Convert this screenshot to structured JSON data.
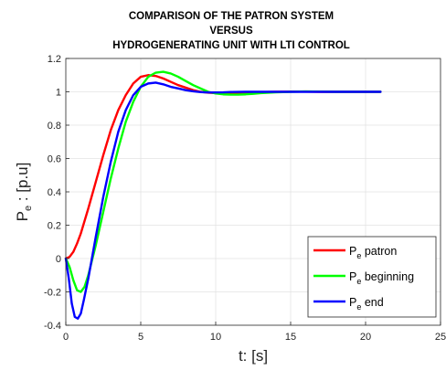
{
  "chart_data": {
    "type": "line",
    "title": [
      "COMPARISON OF THE PATRON SYSTEM",
      "VERSUS",
      "HYDROGENERATING UNIT WITH LTI CONTROL"
    ],
    "xlabel": "t: [s]",
    "ylabel": {
      "main": "P",
      "sub": "e",
      "rest": " : [p.u]"
    },
    "xlim": [
      0,
      25
    ],
    "ylim": [
      -0.4,
      1.2
    ],
    "xticks": [
      0,
      5,
      10,
      15,
      20,
      25
    ],
    "yticks": [
      -0.4,
      -0.2,
      0,
      0.2,
      0.4,
      0.6,
      0.8,
      1,
      1.2
    ],
    "grid": true,
    "legend_position": "bottom-right",
    "series": [
      {
        "name": {
          "main": "P",
          "sub": "e",
          "rest": " patron"
        },
        "color": "#ff0000",
        "x": [
          0,
          0.25,
          0.5,
          0.75,
          1.0,
          1.5,
          2.0,
          2.5,
          3.0,
          3.5,
          4.0,
          4.5,
          5.0,
          5.5,
          6.0,
          6.5,
          7.0,
          7.5,
          8.0,
          8.5,
          9.0,
          9.5,
          10.0,
          10.5,
          11.0,
          11.5,
          12.0,
          13.0,
          14.0,
          15.0,
          16.0,
          17.0,
          18.0,
          19.0,
          20.0,
          21.0
        ],
        "y": [
          0,
          0.01,
          0.04,
          0.09,
          0.15,
          0.3,
          0.46,
          0.62,
          0.77,
          0.89,
          0.98,
          1.05,
          1.09,
          1.1,
          1.095,
          1.08,
          1.06,
          1.04,
          1.025,
          1.01,
          1.0,
          0.995,
          0.992,
          0.99,
          0.99,
          0.992,
          0.995,
          0.998,
          1.0,
          1.001,
          1.001,
          1.0,
          1.0,
          1.0,
          1.0,
          1.0
        ]
      },
      {
        "name": {
          "main": "P",
          "sub": "e",
          "rest": " beginning"
        },
        "color": "#00ff00",
        "x": [
          0,
          0.25,
          0.5,
          0.75,
          1.0,
          1.25,
          1.5,
          2.0,
          2.5,
          3.0,
          3.5,
          4.0,
          4.5,
          5.0,
          5.5,
          6.0,
          6.5,
          7.0,
          7.5,
          8.0,
          8.5,
          9.0,
          9.5,
          10.0,
          10.5,
          11.0,
          11.5,
          12.0,
          12.5,
          13.0,
          14.0,
          15.0,
          16.0,
          17.0,
          18.0,
          19.0,
          20.0,
          21.0
        ],
        "y": [
          0,
          -0.05,
          -0.13,
          -0.19,
          -0.2,
          -0.17,
          -0.1,
          0.08,
          0.28,
          0.48,
          0.66,
          0.82,
          0.94,
          1.03,
          1.09,
          1.115,
          1.12,
          1.11,
          1.09,
          1.065,
          1.04,
          1.02,
          1.0,
          0.99,
          0.985,
          0.983,
          0.983,
          0.985,
          0.988,
          0.992,
          0.997,
          1.0,
          1.002,
          1.001,
          1.0,
          1.0,
          1.0,
          1.0
        ]
      },
      {
        "name": {
          "main": "P",
          "sub": "e",
          "rest": " end"
        },
        "color": "#0000ff",
        "x": [
          0,
          0.2,
          0.4,
          0.6,
          0.8,
          1.0,
          1.2,
          1.5,
          2.0,
          2.5,
          3.0,
          3.5,
          4.0,
          4.5,
          5.0,
          5.5,
          6.0,
          6.5,
          7.0,
          7.5,
          8.0,
          8.5,
          9.0,
          9.5,
          10.0,
          10.5,
          11.0,
          12.0,
          13.0,
          14.0,
          15.0,
          16.0,
          17.0,
          18.0,
          19.0,
          20.0,
          21.0
        ],
        "y": [
          0,
          -0.12,
          -0.27,
          -0.35,
          -0.36,
          -0.33,
          -0.25,
          -0.12,
          0.13,
          0.37,
          0.58,
          0.76,
          0.89,
          0.98,
          1.03,
          1.05,
          1.055,
          1.045,
          1.03,
          1.02,
          1.01,
          1.003,
          0.998,
          0.996,
          0.996,
          0.997,
          0.999,
          1.0,
          1.0,
          1.0,
          1.0,
          1.0,
          1.0,
          1.0,
          1.0,
          1.0,
          1.0
        ]
      }
    ]
  }
}
